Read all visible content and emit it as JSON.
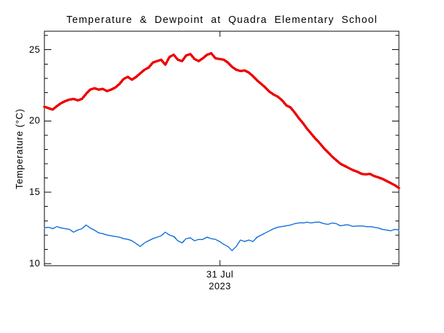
{
  "chart_data": {
    "type": "line",
    "title": "Temperature & Dewpoint at Quadra Elementary School",
    "ylabel": "Temperature (°C)",
    "ylim": [
      9.85,
      26.3
    ],
    "grid": false,
    "legend": "none",
    "axis_color": "#000000",
    "y_major_ticks": [
      10,
      15,
      20,
      25
    ],
    "y_minor_tick_interval": 1,
    "x_axis": {
      "tick_label_line1": "31 Jul",
      "tick_label_line2": "2023",
      "tick_frac": 0.495
    },
    "x_frac_start": 0,
    "x_frac_step": 0.0117647,
    "series": [
      {
        "name": "Temperature",
        "color": "#ee0000",
        "width": 3.5,
        "values": [
          21.0,
          20.9,
          20.8,
          21.05,
          21.25,
          21.4,
          21.5,
          21.55,
          21.45,
          21.55,
          21.9,
          22.2,
          22.3,
          22.2,
          22.25,
          22.1,
          22.2,
          22.35,
          22.6,
          22.95,
          23.1,
          22.9,
          23.1,
          23.35,
          23.6,
          23.75,
          24.1,
          24.2,
          24.3,
          23.95,
          24.5,
          24.65,
          24.3,
          24.2,
          24.6,
          24.7,
          24.35,
          24.2,
          24.4,
          24.65,
          24.75,
          24.4,
          24.35,
          24.3,
          24.1,
          23.8,
          23.6,
          23.5,
          23.55,
          23.4,
          23.15,
          22.85,
          22.6,
          22.35,
          22.05,
          21.85,
          21.7,
          21.45,
          21.1,
          20.95,
          20.6,
          20.2,
          19.85,
          19.45,
          19.1,
          18.75,
          18.45,
          18.1,
          17.8,
          17.5,
          17.25,
          17.0,
          16.85,
          16.7,
          16.55,
          16.45,
          16.3,
          16.25,
          16.3,
          16.15,
          16.05,
          15.95,
          15.8,
          15.65,
          15.5,
          15.3
        ]
      },
      {
        "name": "Dewpoint",
        "color": "#1874dc",
        "width": 1.5,
        "values": [
          12.5,
          12.55,
          12.45,
          12.6,
          12.5,
          12.45,
          12.4,
          12.2,
          12.35,
          12.45,
          12.7,
          12.5,
          12.35,
          12.15,
          12.1,
          12.0,
          11.95,
          11.9,
          11.85,
          11.75,
          11.7,
          11.6,
          11.4,
          11.2,
          11.45,
          11.6,
          11.75,
          11.85,
          11.95,
          12.2,
          12.0,
          11.9,
          11.6,
          11.45,
          11.75,
          11.8,
          11.6,
          11.7,
          11.7,
          11.85,
          11.75,
          11.7,
          11.55,
          11.35,
          11.2,
          10.9,
          11.2,
          11.65,
          11.55,
          11.65,
          11.55,
          11.85,
          12.0,
          12.15,
          12.3,
          12.45,
          12.55,
          12.6,
          12.65,
          12.7,
          12.8,
          12.85,
          12.85,
          12.9,
          12.85,
          12.9,
          12.9,
          12.8,
          12.75,
          12.85,
          12.8,
          12.65,
          12.7,
          12.7,
          12.6,
          12.65,
          12.65,
          12.6,
          12.6,
          12.55,
          12.5,
          12.4,
          12.35,
          12.3,
          12.4,
          12.35
        ]
      }
    ]
  }
}
